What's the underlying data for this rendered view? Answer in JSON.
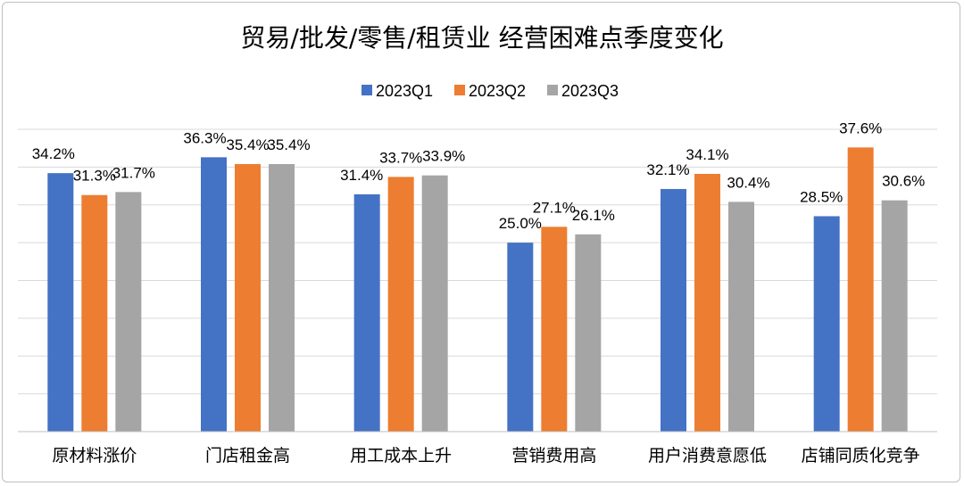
{
  "chart_data": {
    "type": "bar",
    "title": "贸易/批发/零售/租赁业 经营困难点季度变化",
    "xlabel": "",
    "ylabel": "",
    "ylim": [
      0,
      40
    ],
    "grid": true,
    "legend_position": "top",
    "categories": [
      "原材料涨价",
      "门店租金高",
      "用工成本上升",
      "营销费用高",
      "用户消费意愿低",
      "店铺同质化竞争"
    ],
    "series": [
      {
        "name": "2023Q1",
        "color": "#4472C4",
        "values": [
          34.2,
          36.3,
          31.4,
          25.0,
          32.1,
          28.5
        ]
      },
      {
        "name": "2023Q2",
        "color": "#ED7D31",
        "values": [
          31.3,
          35.4,
          33.7,
          27.1,
          34.1,
          37.6
        ]
      },
      {
        "name": "2023Q3",
        "color": "#A5A5A5",
        "values": [
          31.7,
          35.4,
          33.9,
          26.1,
          30.4,
          30.6
        ]
      }
    ],
    "data_labels": [
      [
        "34.2%",
        "36.3%",
        "31.4%",
        "25.0%",
        "32.1%",
        "28.5%"
      ],
      [
        "31.3%",
        "35.4%",
        "33.7%",
        "27.1%",
        "34.1%",
        "37.6%"
      ],
      [
        "31.7%",
        "35.4%",
        "33.9%",
        "26.1%",
        "30.4%",
        "30.6%"
      ]
    ]
  }
}
